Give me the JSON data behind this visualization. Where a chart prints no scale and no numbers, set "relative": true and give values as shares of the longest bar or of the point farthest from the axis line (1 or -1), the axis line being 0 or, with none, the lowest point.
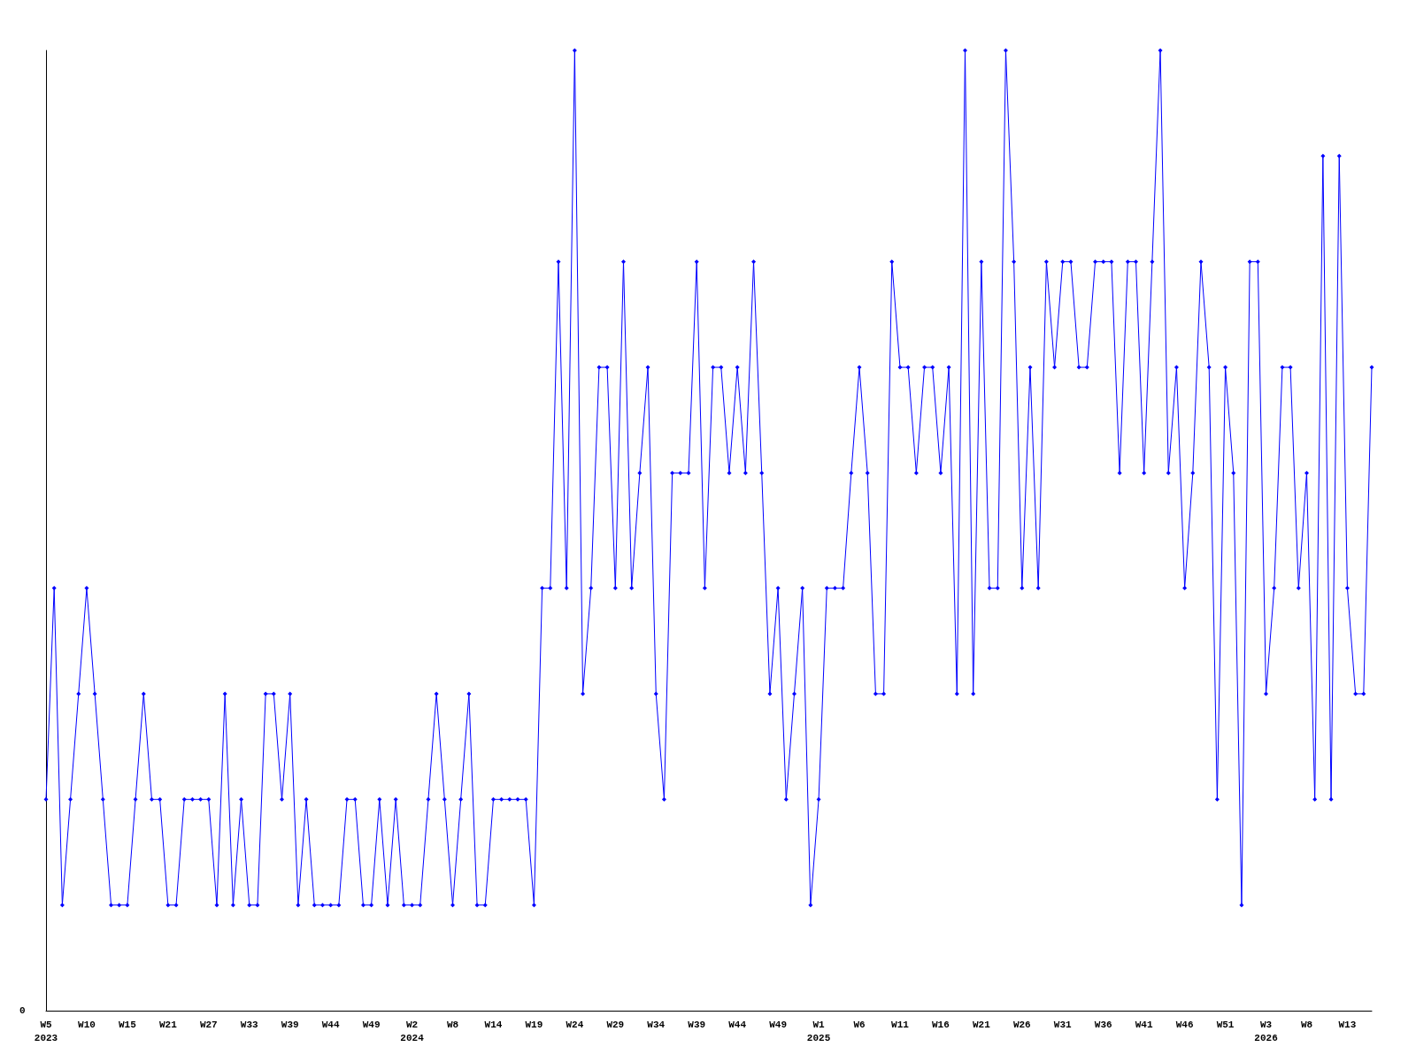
{
  "chart_data": {
    "type": "line",
    "relative": true,
    "marker": "diamond",
    "line_style": "solid",
    "categories": [
      "W5\n2023",
      null,
      null,
      null,
      null,
      "W10",
      null,
      null,
      null,
      null,
      "W15",
      null,
      null,
      null,
      null,
      "W21",
      null,
      null,
      null,
      null,
      "W27",
      null,
      null,
      null,
      null,
      "W33",
      null,
      null,
      null,
      null,
      "W39",
      null,
      null,
      null,
      null,
      "W44",
      null,
      null,
      null,
      null,
      "W49",
      null,
      null,
      null,
      null,
      "W2\n2024",
      null,
      null,
      null,
      null,
      "W8",
      null,
      null,
      null,
      null,
      "W14",
      null,
      null,
      null,
      null,
      "W19",
      null,
      null,
      null,
      null,
      "W24",
      null,
      null,
      null,
      null,
      "W29",
      null,
      null,
      null,
      null,
      "W34",
      null,
      null,
      null,
      null,
      "W39",
      null,
      null,
      null,
      null,
      "W44",
      null,
      null,
      null,
      null,
      "W49",
      null,
      null,
      null,
      null,
      "W1\n2025",
      null,
      null,
      null,
      null,
      "W6",
      null,
      null,
      null,
      null,
      "W11",
      null,
      null,
      null,
      null,
      "W16",
      null,
      null,
      null,
      null,
      "W21",
      null,
      null,
      null,
      null,
      "W26",
      null,
      null,
      null,
      null,
      "W31",
      null,
      null,
      null,
      null,
      "W36",
      null,
      null,
      null,
      null,
      "W41",
      null,
      null,
      null,
      null,
      "W46",
      null,
      null,
      null,
      null,
      "W51",
      null,
      null,
      null,
      null,
      "W3\n2026",
      null,
      null,
      null,
      null,
      "W8",
      null,
      null,
      null,
      null,
      "W13",
      null,
      null,
      null
    ],
    "series": [
      {
        "color": "#0000ff",
        "values": [
          0.22,
          0.44,
          0.11,
          0.22,
          0.33,
          0.44,
          0.33,
          0.22,
          0.11,
          0.11,
          0.11,
          0.22,
          0.33,
          0.22,
          0.22,
          0.11,
          0.11,
          0.22,
          0.22,
          0.22,
          0.22,
          0.11,
          0.33,
          0.11,
          0.22,
          0.11,
          0.11,
          0.33,
          0.33,
          0.22,
          0.33,
          0.11,
          0.22,
          0.11,
          0.11,
          0.11,
          0.11,
          0.22,
          0.22,
          0.11,
          0.11,
          0.22,
          0.11,
          0.22,
          0.11,
          0.11,
          0.11,
          0.22,
          0.33,
          0.22,
          0.11,
          0.22,
          0.33,
          0.11,
          0.11,
          0.22,
          0.22,
          0.22,
          0.22,
          0.22,
          0.11,
          0.44,
          0.44,
          0.78,
          0.44,
          1,
          0.33,
          0.44,
          0.67,
          0.67,
          0.44,
          0.78,
          0.44,
          0.56,
          0.67,
          0.33,
          0.22,
          0.56,
          0.56,
          0.56,
          0.78,
          0.44,
          0.67,
          0.67,
          0.56,
          0.67,
          0.56,
          0.78,
          0.56,
          0.33,
          0.44,
          0.22,
          0.33,
          0.44,
          0.11,
          0.22,
          0.44,
          0.44,
          0.44,
          0.56,
          0.67,
          0.56,
          0.33,
          0.33,
          0.78,
          0.67,
          0.67,
          0.56,
          0.67,
          0.67,
          0.56,
          0.67,
          0.33,
          1,
          0.33,
          0.78,
          0.44,
          0.44,
          1,
          0.78,
          0.44,
          0.67,
          0.44,
          0.78,
          0.67,
          0.78,
          0.78,
          0.67,
          0.67,
          0.78,
          0.78,
          0.78,
          0.56,
          0.78,
          0.78,
          0.56,
          0.78,
          1,
          0.56,
          0.67,
          0.44,
          0.56,
          0.78,
          0.67,
          0.22,
          0.67,
          0.56,
          0.11,
          0.78,
          0.78,
          0.33,
          0.44,
          0.67,
          0.67,
          0.44,
          0.56,
          0.22,
          0.89,
          0.22,
          0.89,
          0.44,
          0.33,
          0.33,
          0.67
        ]
      }
    ],
    "annotations": [
      "0"
    ]
  }
}
